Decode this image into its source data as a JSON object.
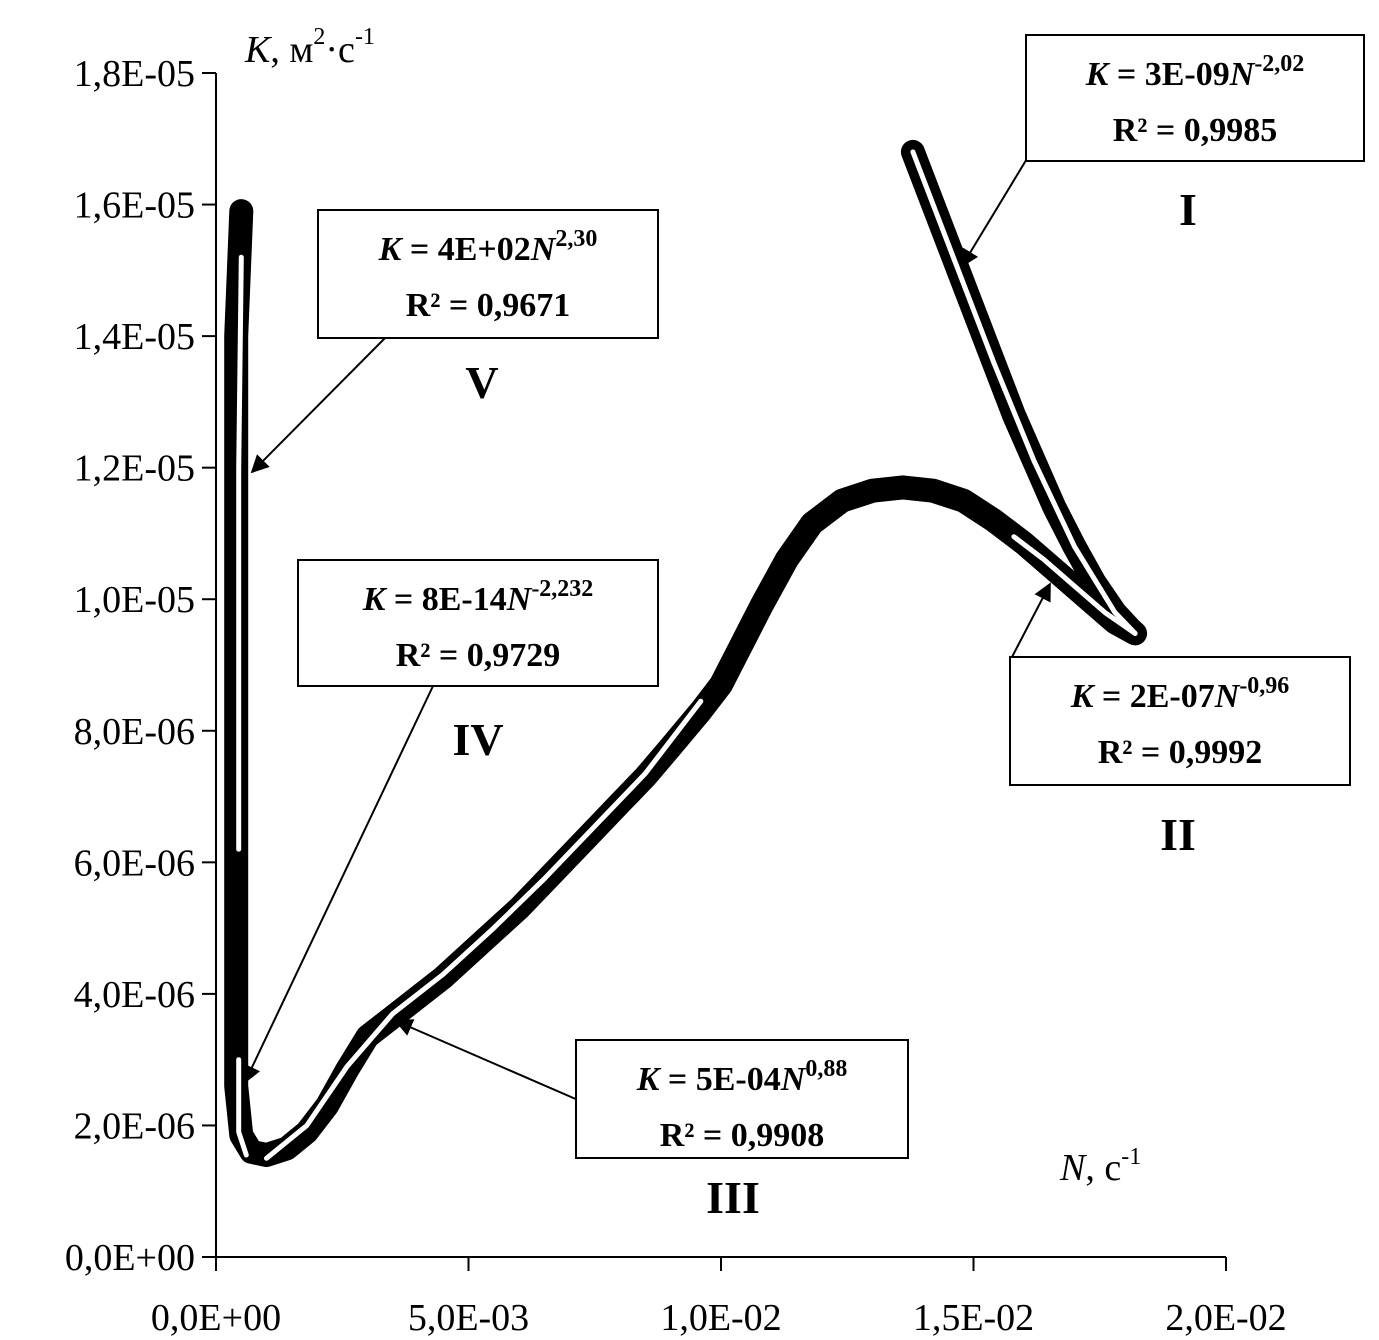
{
  "chart_data": {
    "type": "line",
    "title": "",
    "xlabel": {
      "var": "N",
      "rest": ", с",
      "sup": "-1"
    },
    "ylabel": {
      "var": "K",
      "rest1": ", м",
      "sup1": "2",
      "rest2": "·с",
      "sup2": "-1"
    },
    "xlim": [
      0,
      0.02
    ],
    "ylim": [
      0,
      1.8e-05
    ],
    "x_ticks": [
      "0,0E+00",
      "5,0E-03",
      "1,0E-02",
      "1,5E-02",
      "2,0E-02"
    ],
    "y_ticks": [
      "0,0E+00",
      "2,0E-06",
      "4,0E-06",
      "6,0E-06",
      "8,0E-06",
      "1,0E-05",
      "1,2E-05",
      "1,4E-05",
      "1,6E-05",
      "1,8E-05"
    ],
    "grid": false,
    "series": [
      {
        "points": [
          [
            0.0138,
            1.68e-05
          ],
          [
            0.0142,
            1.6e-05
          ],
          [
            0.0146,
            1.52e-05
          ],
          [
            0.015,
            1.44e-05
          ],
          [
            0.0154,
            1.36e-05
          ],
          [
            0.0158,
            1.28e-05
          ],
          [
            0.0162,
            1.21e-05
          ],
          [
            0.0166,
            1.14e-05
          ],
          [
            0.017,
            1.08e-05
          ],
          [
            0.0174,
            1.025e-05
          ],
          [
            0.0178,
            9.8e-06
          ],
          [
            0.0181,
            9.55e-06
          ],
          [
            0.0182,
            9.48e-06
          ],
          [
            0.0178,
            9.65e-06
          ],
          [
            0.0172,
            1.005e-05
          ],
          [
            0.0166,
            1.045e-05
          ],
          [
            0.016,
            1.085e-05
          ],
          [
            0.0154,
            1.12e-05
          ],
          [
            0.0148,
            1.15e-05
          ],
          [
            0.0142,
            1.165e-05
          ],
          [
            0.0136,
            1.17e-05
          ],
          [
            0.013,
            1.165e-05
          ],
          [
            0.0124,
            1.15e-05
          ],
          [
            0.0118,
            1.115e-05
          ],
          [
            0.0113,
            1.06e-05
          ],
          [
            0.0108,
            9.9e-06
          ],
          [
            0.0104,
            9.3e-06
          ],
          [
            0.01,
            8.7e-06
          ],
          [
            0.0096,
            8.3e-06
          ],
          [
            0.009,
            7.75e-06
          ],
          [
            0.0085,
            7.3e-06
          ],
          [
            0.008,
            6.9e-06
          ],
          [
            0.0075,
            6.5e-06
          ],
          [
            0.007,
            6.1e-06
          ],
          [
            0.0065,
            5.7e-06
          ],
          [
            0.006,
            5.3e-06
          ],
          [
            0.0055,
            4.95e-06
          ],
          [
            0.005,
            4.6e-06
          ],
          [
            0.0045,
            4.25e-06
          ],
          [
            0.004,
            3.95e-06
          ],
          [
            0.0035,
            3.65e-06
          ],
          [
            0.003,
            3.35e-06
          ],
          [
            0.0026,
            2.85e-06
          ],
          [
            0.0022,
            2.3e-06
          ],
          [
            0.0018,
            1.9e-06
          ],
          [
            0.0014,
            1.65e-06
          ],
          [
            0.001,
            1.55e-06
          ],
          [
            0.0007,
            1.6e-06
          ],
          [
            0.0005,
            1.85e-06
          ],
          [
            0.0004,
            2.6e-06
          ],
          [
            0.0004,
            4e-06
          ],
          [
            0.0004,
            6e-06
          ],
          [
            0.0004,
            8e-06
          ],
          [
            0.0004,
            1e-05
          ],
          [
            0.0004,
            1.2e-05
          ],
          [
            0.0004,
            1.4e-05
          ],
          [
            0.0005,
            1.59e-05
          ]
        ]
      }
    ],
    "trendlines": [
      {
        "points": [
          [
            0.0138,
            1.68e-05
          ],
          [
            0.0146,
            1.52e-05
          ],
          [
            0.0154,
            1.36e-05
          ],
          [
            0.0162,
            1.21e-05
          ],
          [
            0.017,
            1.08e-05
          ],
          [
            0.0178,
            9.8e-06
          ],
          [
            0.0182,
            9.48e-06
          ]
        ]
      },
      {
        "points": [
          [
            0.0182,
            9.48e-06
          ],
          [
            0.0176,
            9.8e-06
          ],
          [
            0.017,
            1.02e-05
          ],
          [
            0.0164,
            1.06e-05
          ],
          [
            0.0158,
            1.095e-05
          ]
        ]
      },
      {
        "points": [
          [
            0.001,
            1.5e-06
          ],
          [
            0.0018,
            2e-06
          ],
          [
            0.0026,
            2.9e-06
          ],
          [
            0.0035,
            3.7e-06
          ],
          [
            0.0045,
            4.3e-06
          ],
          [
            0.0055,
            5e-06
          ],
          [
            0.0065,
            5.75e-06
          ],
          [
            0.0075,
            6.55e-06
          ],
          [
            0.0085,
            7.35e-06
          ],
          [
            0.0096,
            8.45e-06
          ]
        ]
      },
      {
        "points": [
          [
            0.00045,
            3e-06
          ],
          [
            0.00045,
            1.9e-06
          ],
          [
            0.0006,
            1.55e-06
          ]
        ]
      },
      {
        "points": [
          [
            0.00045,
            6.2e-06
          ],
          [
            0.00045,
            9e-06
          ],
          [
            0.00045,
            1.2e-05
          ],
          [
            0.0005,
            1.52e-05
          ]
        ]
      }
    ],
    "annotations": [
      {
        "id": "I",
        "roman": "I",
        "var": "K",
        "eq_mid": " = 3E-09",
        "var2": "N",
        "exp": "-2,02",
        "r2": "R² = 0,9985"
      },
      {
        "id": "II",
        "roman": "II",
        "var": "K",
        "eq_mid": " = 2E-07",
        "var2": "N",
        "exp": "-0,96",
        "r2": "R² = 0,9992"
      },
      {
        "id": "III",
        "roman": "III",
        "var": "K",
        "eq_mid": " = 5E-04",
        "var2": "N",
        "exp": "0,88",
        "r2": "R² = 0,9908"
      },
      {
        "id": "IV",
        "roman": "IV",
        "var": "K",
        "eq_mid": " = 8E-14",
        "var2": "N",
        "exp": "-2,232",
        "r2": "R² = 0,9729"
      },
      {
        "id": "V",
        "roman": "V",
        "var": "K",
        "eq_mid": " = 4E+02",
        "var2": "N",
        "exp": "2,30",
        "r2": "R² = 0,9671"
      }
    ]
  }
}
